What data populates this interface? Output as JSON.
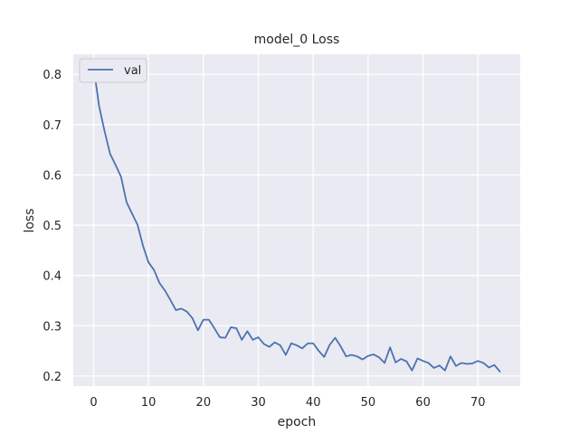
{
  "chart_data": {
    "type": "line",
    "title": "model_0 Loss",
    "xlabel": "epoch",
    "ylabel": "loss",
    "xlim": [
      -3.7,
      77.7
    ],
    "ylim": [
      0.18,
      0.84
    ],
    "xticks": [
      0,
      10,
      20,
      30,
      40,
      50,
      60,
      70
    ],
    "yticks": [
      0.2,
      0.3,
      0.4,
      0.5,
      0.6,
      0.7,
      0.8
    ],
    "ytick_labels": [
      "0.2",
      "0.3",
      "0.4",
      "0.5",
      "0.6",
      "0.7",
      "0.8"
    ],
    "grid": true,
    "legend": {
      "position": "top-left"
    },
    "colors": {
      "background": "#eaeaf2",
      "grid": "#ffffff",
      "line": "#4c72b0"
    },
    "series": [
      {
        "name": "val",
        "x": [
          0,
          1,
          2,
          3,
          4,
          5,
          6,
          7,
          8,
          9,
          10,
          11,
          12,
          13,
          14,
          15,
          16,
          17,
          18,
          19,
          20,
          21,
          22,
          23,
          24,
          25,
          26,
          27,
          28,
          29,
          30,
          31,
          32,
          33,
          34,
          35,
          36,
          37,
          38,
          39,
          40,
          41,
          42,
          43,
          44,
          45,
          46,
          47,
          48,
          49,
          50,
          51,
          52,
          53,
          54,
          55,
          56,
          57,
          58,
          59,
          60,
          61,
          62,
          63,
          64,
          65,
          66,
          67,
          68,
          69,
          70,
          71,
          72,
          73,
          74
        ],
        "values": [
          0.815,
          0.737,
          0.687,
          0.642,
          0.62,
          0.596,
          0.546,
          0.523,
          0.501,
          0.459,
          0.426,
          0.411,
          0.385,
          0.37,
          0.351,
          0.331,
          0.334,
          0.328,
          0.315,
          0.291,
          0.312,
          0.312,
          0.295,
          0.277,
          0.276,
          0.297,
          0.295,
          0.272,
          0.289,
          0.272,
          0.277,
          0.264,
          0.258,
          0.267,
          0.261,
          0.242,
          0.265,
          0.261,
          0.255,
          0.265,
          0.265,
          0.25,
          0.238,
          0.262,
          0.276,
          0.259,
          0.239,
          0.242,
          0.239,
          0.233,
          0.24,
          0.243,
          0.237,
          0.226,
          0.257,
          0.227,
          0.234,
          0.229,
          0.211,
          0.235,
          0.23,
          0.226,
          0.216,
          0.221,
          0.211,
          0.239,
          0.22,
          0.226,
          0.224,
          0.225,
          0.23,
          0.226,
          0.217,
          0.222,
          0.209
        ]
      }
    ]
  }
}
